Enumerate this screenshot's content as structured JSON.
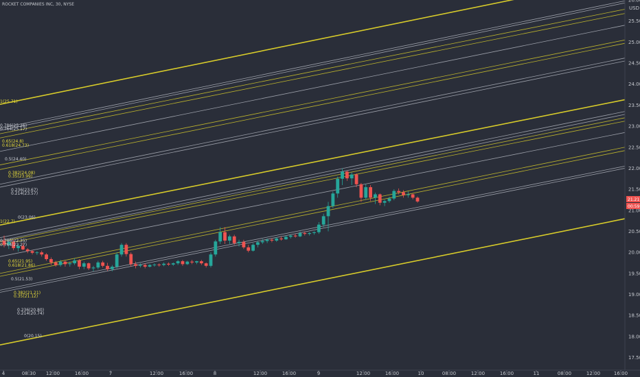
{
  "header": {
    "title": "ROCKET COMPANIES INC, 30, NYSE",
    "currency": "USD"
  },
  "colors": {
    "background": "#2a2e39",
    "yellow": "#d8cc2a",
    "white_line": "#b2b5be",
    "up": "#26a69a",
    "down": "#ef5350",
    "axis_text": "#c5c8ce"
  },
  "last_price": {
    "value": "21.21",
    "countdown": "00:59"
  },
  "chart_data": {
    "type": "candlestick",
    "title": "ROCKET COMPANIES INC, 30, NYSE",
    "ylim": [
      17.2,
      26.0
    ],
    "y_ticks": [
      "26.00",
      "25.50",
      "25.00",
      "24.50",
      "24.00",
      "23.50",
      "23.00",
      "22.50",
      "22.00",
      "21.50",
      "21.00",
      "20.50",
      "20.00",
      "19.50",
      "19.00",
      "18.50",
      "18.00",
      "17.50"
    ],
    "x_ticks": [
      "4",
      "08:30",
      "12:00",
      "16:00",
      "7",
      "12:00",
      "16:00",
      "8",
      "12:00",
      "16:00",
      "9",
      "12:00",
      "16:00",
      "10",
      "08:00",
      "12:00",
      "16:00",
      "11",
      "08:00",
      "12:00",
      "16:00"
    ],
    "candles": [
      {
        "o": 20.28,
        "h": 20.4,
        "l": 20.12,
        "c": 20.18
      },
      {
        "o": 20.18,
        "h": 20.3,
        "l": 20.08,
        "c": 20.25
      },
      {
        "o": 20.25,
        "h": 20.3,
        "l": 20.05,
        "c": 20.1
      },
      {
        "o": 20.1,
        "h": 20.2,
        "l": 20.02,
        "c": 20.15
      },
      {
        "o": 20.15,
        "h": 20.22,
        "l": 20.05,
        "c": 20.07
      },
      {
        "o": 20.07,
        "h": 20.1,
        "l": 19.98,
        "c": 20.03
      },
      {
        "o": 20.03,
        "h": 20.06,
        "l": 19.95,
        "c": 19.99
      },
      {
        "o": 19.99,
        "h": 20.03,
        "l": 19.94,
        "c": 20.0
      },
      {
        "o": 20.0,
        "h": 20.04,
        "l": 19.9,
        "c": 19.95
      },
      {
        "o": 19.95,
        "h": 19.98,
        "l": 19.8,
        "c": 19.84
      },
      {
        "o": 19.84,
        "h": 19.88,
        "l": 19.7,
        "c": 19.76
      },
      {
        "o": 19.76,
        "h": 19.8,
        "l": 19.66,
        "c": 19.7
      },
      {
        "o": 19.7,
        "h": 19.82,
        "l": 19.66,
        "c": 19.78
      },
      {
        "o": 19.78,
        "h": 19.8,
        "l": 19.66,
        "c": 19.72
      },
      {
        "o": 19.72,
        "h": 19.78,
        "l": 19.66,
        "c": 19.74
      },
      {
        "o": 19.74,
        "h": 19.86,
        "l": 19.7,
        "c": 19.81
      },
      {
        "o": 19.81,
        "h": 19.84,
        "l": 19.6,
        "c": 19.66
      },
      {
        "o": 19.66,
        "h": 19.78,
        "l": 19.6,
        "c": 19.74
      },
      {
        "o": 19.74,
        "h": 19.76,
        "l": 19.58,
        "c": 19.62
      },
      {
        "o": 19.62,
        "h": 19.68,
        "l": 19.55,
        "c": 19.64
      },
      {
        "o": 19.64,
        "h": 19.8,
        "l": 19.6,
        "c": 19.76
      },
      {
        "o": 19.76,
        "h": 19.8,
        "l": 19.64,
        "c": 19.68
      },
      {
        "o": 19.68,
        "h": 19.75,
        "l": 19.56,
        "c": 19.6
      },
      {
        "o": 19.6,
        "h": 19.7,
        "l": 19.55,
        "c": 19.66
      },
      {
        "o": 19.66,
        "h": 20.0,
        "l": 19.62,
        "c": 19.95
      },
      {
        "o": 19.95,
        "h": 20.22,
        "l": 19.9,
        "c": 20.18
      },
      {
        "o": 20.18,
        "h": 20.22,
        "l": 19.9,
        "c": 19.96
      },
      {
        "o": 19.96,
        "h": 20.0,
        "l": 19.66,
        "c": 19.72
      },
      {
        "o": 19.72,
        "h": 19.78,
        "l": 19.62,
        "c": 19.68
      },
      {
        "o": 19.68,
        "h": 19.74,
        "l": 19.64,
        "c": 19.7
      },
      {
        "o": 19.7,
        "h": 19.74,
        "l": 19.62,
        "c": 19.66
      },
      {
        "o": 19.66,
        "h": 19.72,
        "l": 19.64,
        "c": 19.7
      },
      {
        "o": 19.7,
        "h": 19.74,
        "l": 19.66,
        "c": 19.71
      },
      {
        "o": 19.71,
        "h": 19.74,
        "l": 19.66,
        "c": 19.7
      },
      {
        "o": 19.7,
        "h": 19.76,
        "l": 19.67,
        "c": 19.73
      },
      {
        "o": 19.73,
        "h": 19.76,
        "l": 19.68,
        "c": 19.71
      },
      {
        "o": 19.71,
        "h": 19.76,
        "l": 19.68,
        "c": 19.74
      },
      {
        "o": 19.74,
        "h": 19.82,
        "l": 19.7,
        "c": 19.79
      },
      {
        "o": 19.79,
        "h": 19.82,
        "l": 19.68,
        "c": 19.72
      },
      {
        "o": 19.72,
        "h": 19.8,
        "l": 19.7,
        "c": 19.78
      },
      {
        "o": 19.78,
        "h": 19.82,
        "l": 19.72,
        "c": 19.76
      },
      {
        "o": 19.76,
        "h": 19.8,
        "l": 19.72,
        "c": 19.79
      },
      {
        "o": 19.79,
        "h": 19.82,
        "l": 19.7,
        "c": 19.74
      },
      {
        "o": 19.74,
        "h": 19.76,
        "l": 19.64,
        "c": 19.68
      },
      {
        "o": 19.68,
        "h": 20.0,
        "l": 19.64,
        "c": 19.95
      },
      {
        "o": 19.95,
        "h": 20.3,
        "l": 19.9,
        "c": 20.26
      },
      {
        "o": 20.26,
        "h": 20.6,
        "l": 20.2,
        "c": 20.48
      },
      {
        "o": 20.48,
        "h": 20.6,
        "l": 20.2,
        "c": 20.28
      },
      {
        "o": 20.28,
        "h": 20.42,
        "l": 20.2,
        "c": 20.38
      },
      {
        "o": 20.38,
        "h": 20.42,
        "l": 20.18,
        "c": 20.22
      },
      {
        "o": 20.22,
        "h": 20.3,
        "l": 20.14,
        "c": 20.25
      },
      {
        "o": 20.25,
        "h": 20.3,
        "l": 20.08,
        "c": 20.12
      },
      {
        "o": 20.12,
        "h": 20.18,
        "l": 20.0,
        "c": 20.04
      },
      {
        "o": 20.04,
        "h": 20.22,
        "l": 20.02,
        "c": 20.18
      },
      {
        "o": 20.18,
        "h": 20.28,
        "l": 20.12,
        "c": 20.24
      },
      {
        "o": 20.24,
        "h": 20.32,
        "l": 20.2,
        "c": 20.27
      },
      {
        "o": 20.27,
        "h": 20.33,
        "l": 20.22,
        "c": 20.3
      },
      {
        "o": 20.3,
        "h": 20.34,
        "l": 20.24,
        "c": 20.28
      },
      {
        "o": 20.28,
        "h": 20.36,
        "l": 20.25,
        "c": 20.33
      },
      {
        "o": 20.33,
        "h": 20.38,
        "l": 20.28,
        "c": 20.31
      },
      {
        "o": 20.31,
        "h": 20.4,
        "l": 20.3,
        "c": 20.37
      },
      {
        "o": 20.37,
        "h": 20.42,
        "l": 20.33,
        "c": 20.4
      },
      {
        "o": 20.4,
        "h": 20.44,
        "l": 20.35,
        "c": 20.38
      },
      {
        "o": 20.38,
        "h": 20.5,
        "l": 20.36,
        "c": 20.46
      },
      {
        "o": 20.46,
        "h": 20.5,
        "l": 20.4,
        "c": 20.44
      },
      {
        "o": 20.44,
        "h": 20.48,
        "l": 20.4,
        "c": 20.46
      },
      {
        "o": 20.46,
        "h": 20.5,
        "l": 20.42,
        "c": 20.48
      },
      {
        "o": 20.48,
        "h": 20.72,
        "l": 20.44,
        "c": 20.66
      },
      {
        "o": 20.66,
        "h": 20.92,
        "l": 20.6,
        "c": 20.86
      },
      {
        "o": 20.86,
        "h": 21.2,
        "l": 20.5,
        "c": 21.1
      },
      {
        "o": 21.1,
        "h": 21.45,
        "l": 21.05,
        "c": 21.4
      },
      {
        "o": 21.4,
        "h": 21.8,
        "l": 21.3,
        "c": 21.75
      },
      {
        "o": 21.75,
        "h": 22.0,
        "l": 21.6,
        "c": 21.92
      },
      {
        "o": 21.92,
        "h": 21.95,
        "l": 21.7,
        "c": 21.76
      },
      {
        "o": 21.76,
        "h": 21.9,
        "l": 21.6,
        "c": 21.85
      },
      {
        "o": 21.85,
        "h": 21.88,
        "l": 21.55,
        "c": 21.62
      },
      {
        "o": 21.62,
        "h": 21.65,
        "l": 21.2,
        "c": 21.3
      },
      {
        "o": 21.3,
        "h": 21.62,
        "l": 21.25,
        "c": 21.55
      },
      {
        "o": 21.55,
        "h": 21.6,
        "l": 21.22,
        "c": 21.3
      },
      {
        "o": 21.3,
        "h": 21.42,
        "l": 21.15,
        "c": 21.38
      },
      {
        "o": 21.38,
        "h": 21.4,
        "l": 21.12,
        "c": 21.18
      },
      {
        "o": 21.18,
        "h": 21.25,
        "l": 21.1,
        "c": 21.22
      },
      {
        "o": 21.22,
        "h": 21.32,
        "l": 21.18,
        "c": 21.28
      },
      {
        "o": 21.28,
        "h": 21.5,
        "l": 21.24,
        "c": 21.46
      },
      {
        "o": 21.46,
        "h": 21.52,
        "l": 21.38,
        "c": 21.43
      },
      {
        "o": 21.43,
        "h": 21.48,
        "l": 21.3,
        "c": 21.36
      },
      {
        "o": 21.36,
        "h": 21.45,
        "l": 21.3,
        "c": 21.38
      },
      {
        "o": 21.38,
        "h": 21.4,
        "l": 21.26,
        "c": 21.3
      },
      {
        "o": 21.3,
        "h": 21.33,
        "l": 21.18,
        "c": 21.21
      }
    ],
    "fib_lines": [
      {
        "color": "yellow",
        "thick": true,
        "y0": 23.52,
        "y1": 26.55
      },
      {
        "color": "white",
        "y0": 22.95,
        "y1": 25.98
      },
      {
        "color": "white",
        "y0": 22.9,
        "y1": 25.93
      },
      {
        "color": "yellow",
        "y0": 22.82,
        "y1": 25.78
      },
      {
        "color": "yellow",
        "y0": 22.72,
        "y1": 25.68
      },
      {
        "color": "white",
        "y0": 22.4,
        "y1": 25.4
      },
      {
        "color": "yellow",
        "y0": 22.08,
        "y1": 25.05
      },
      {
        "color": "yellow",
        "y0": 21.97,
        "y1": 24.97
      },
      {
        "color": "white",
        "y0": 21.62,
        "y1": 24.62
      },
      {
        "color": "white",
        "y0": 21.55,
        "y1": 24.55
      },
      {
        "color": "yellow",
        "thick": true,
        "y0": 20.65,
        "y1": 23.63
      },
      {
        "color": "white",
        "y0": 20.35,
        "y1": 23.35
      },
      {
        "color": "white",
        "y0": 20.28,
        "y1": 23.28
      },
      {
        "color": "yellow",
        "y0": 20.25,
        "y1": 23.2
      },
      {
        "color": "yellow",
        "y0": 20.18,
        "y1": 23.12
      },
      {
        "color": "white",
        "y0": 19.9,
        "y1": 22.85
      },
      {
        "color": "yellow",
        "y0": 19.5,
        "y1": 22.5
      },
      {
        "color": "yellow",
        "y0": 19.43,
        "y1": 22.42
      },
      {
        "color": "white",
        "y0": 19.1,
        "y1": 22.05
      },
      {
        "color": "white",
        "y0": 19.05,
        "y1": 22.0
      },
      {
        "color": "yellow",
        "thick": true,
        "y0": 17.8,
        "y1": 20.8
      }
    ],
    "fib_labels": [
      {
        "text": "1(25.71)",
        "color": "yellow"
      },
      {
        "text": "0.786(25.26)",
        "color": "white"
      },
      {
        "text": "0.764(25.17)",
        "color": "white"
      },
      {
        "text": "0.65(24.8)",
        "color": "yellow"
      },
      {
        "text": "0.618(24.73)",
        "color": "yellow"
      },
      {
        "text": "0.5(24.40)",
        "color": "white"
      },
      {
        "text": "0.382(24.08)",
        "color": "yellow"
      },
      {
        "text": "0.35(23.99)",
        "color": "yellow"
      },
      {
        "text": "0.236(23.67)",
        "color": "white"
      },
      {
        "text": "0.214(23.57)",
        "color": "white"
      },
      {
        "text": "0(23.06)",
        "color": "white"
      },
      {
        "text": "0.786(22.35)",
        "color": "white"
      },
      {
        "text": "0.764(22.27)",
        "color": "white"
      },
      {
        "text": "0.65(21.95)",
        "color": "yellow"
      },
      {
        "text": "0.618(21.86)",
        "color": "yellow"
      },
      {
        "text": "0.5(21.53)",
        "color": "white"
      },
      {
        "text": "0.382(21.21)",
        "color": "yellow"
      },
      {
        "text": "0.35(21.12)",
        "color": "yellow"
      },
      {
        "text": "0.236(20.80)",
        "color": "white"
      },
      {
        "text": "0.214(20.74)",
        "color": "white"
      },
      {
        "text": "0(20.15)",
        "color": "white"
      },
      {
        "text": "1(22.7)",
        "color": "yellow"
      }
    ]
  }
}
